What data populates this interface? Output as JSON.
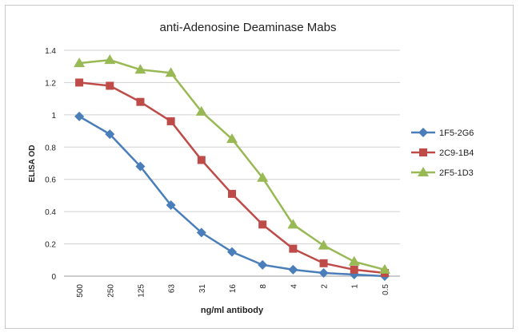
{
  "chart_data": {
    "type": "line",
    "title": "anti-Adenosine Deaminase Mabs",
    "xlabel": "ng/ml antibody",
    "ylabel": "ELISA OD",
    "categories": [
      "500",
      "250",
      "125",
      "63",
      "31",
      "16",
      "8",
      "4",
      "2",
      "1",
      "0.5"
    ],
    "ylim": [
      0,
      1.4
    ],
    "yticks": [
      "0",
      "0.2",
      "0.4",
      "0.6",
      "0.8",
      "1",
      "1.2",
      "1.4"
    ],
    "grid": "horizontal",
    "legend": "right",
    "series": [
      {
        "name": "1F5-2G6",
        "color": "#4a7ebb",
        "marker": "diamond",
        "values": [
          0.99,
          0.88,
          0.68,
          0.44,
          0.27,
          0.15,
          0.07,
          0.04,
          0.02,
          0.01,
          0.0
        ]
      },
      {
        "name": "2C9-1B4",
        "color": "#be4b48",
        "marker": "square",
        "values": [
          1.2,
          1.18,
          1.08,
          0.96,
          0.72,
          0.51,
          0.32,
          0.17,
          0.08,
          0.04,
          0.02
        ]
      },
      {
        "name": "2F5-1D3",
        "color": "#98b954",
        "marker": "triangle",
        "values": [
          1.32,
          1.34,
          1.28,
          1.26,
          1.02,
          0.85,
          0.61,
          0.32,
          0.19,
          0.09,
          0.04
        ]
      }
    ]
  }
}
